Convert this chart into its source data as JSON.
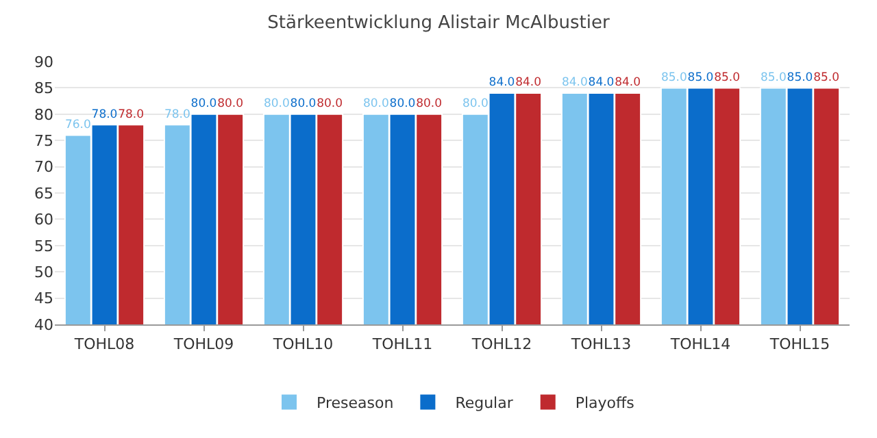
{
  "chart_data": {
    "type": "bar",
    "title": "Stärkeentwicklung Alistair McAlbustier",
    "categories": [
      "TOHL08",
      "TOHL09",
      "TOHL10",
      "TOHL11",
      "TOHL12",
      "TOHL13",
      "TOHL14",
      "TOHL15"
    ],
    "series": [
      {
        "name": "Preseason",
        "color": "#7cc4ee",
        "values": [
          76,
          78,
          80,
          80,
          80,
          84,
          85,
          85
        ],
        "value_labels": [
          "76.0",
          "78.0",
          "80.0",
          "80.0",
          "80.0",
          "84.0",
          "85.0",
          "85.0"
        ]
      },
      {
        "name": "Regular",
        "color": "#0b6dcb",
        "values": [
          78,
          80,
          80,
          80,
          84,
          84,
          85,
          85
        ],
        "value_labels": [
          "78.0",
          "80.0",
          "80.0",
          "80.0",
          "84.0",
          "84.0",
          "85.0",
          "85.0"
        ]
      },
      {
        "name": "Playoffs",
        "color": "#bf2a2e",
        "values": [
          78,
          80,
          80,
          80,
          84,
          84,
          85,
          85
        ],
        "value_labels": [
          "78.0",
          "80.0",
          "80.0",
          "80.0",
          "84.0",
          "84.0",
          "85.0",
          "85.0"
        ]
      }
    ],
    "ylim": [
      40,
      90
    ],
    "yticks": [
      40,
      45,
      50,
      55,
      60,
      65,
      70,
      75,
      80,
      85,
      90
    ],
    "grid": "y",
    "legend": "bottom"
  }
}
